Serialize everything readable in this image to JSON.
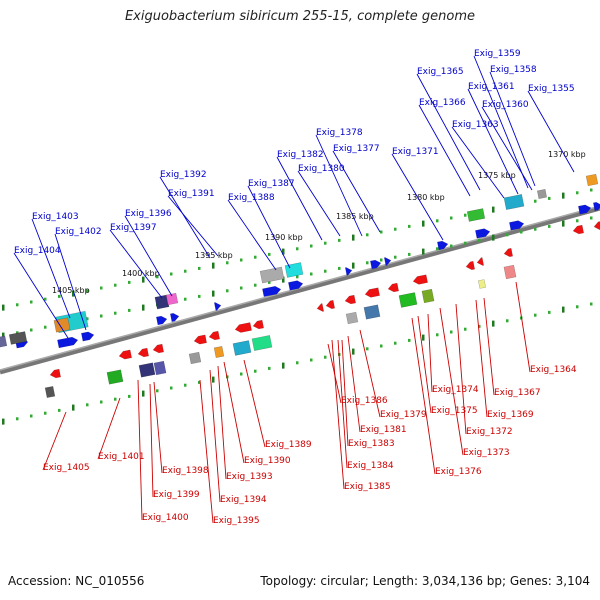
{
  "title": "Exiguobacterium sibiricum 255-15, complete genome",
  "footer": {
    "accession": "Accession: NC_010556",
    "summary": "Topology: circular; Length: 3,034,136 bp; Genes: 3,104"
  },
  "colors": {
    "axis": "#777777",
    "minor_tick": "#33aa33",
    "major_tick": "#1f7a1f",
    "plus_label": "#0000cc",
    "minus_label": "#cc0000",
    "plus_gene": "#0b18e0",
    "minus_gene": "#ee1111"
  },
  "scale_labels": [
    "1405 kbp",
    "1400 kbp",
    "1395 kbp",
    "1390 kbp",
    "1385 kbp",
    "1380 kbp",
    "1375 kbp",
    "1370 kbp"
  ],
  "plus_strand_labels": [
    "Exig_1404",
    "Exig_1403",
    "Exig_1402",
    "Exig_1397",
    "Exig_1396",
    "Exig_1392",
    "Exig_1391",
    "Exig_1388",
    "Exig_1387",
    "Exig_1382",
    "Exig_1380",
    "Exig_1378",
    "Exig_1377",
    "Exig_1371",
    "Exig_1366",
    "Exig_1365",
    "Exig_1363",
    "Exig_1361",
    "Exig_1360",
    "Exig_1359",
    "Exig_1358",
    "Exig_1355"
  ],
  "minus_strand_labels": [
    "Exig_1405",
    "Exig_1401",
    "Exig_1400",
    "Exig_1399",
    "Exig_1398",
    "Exig_1395",
    "Exig_1394",
    "Exig_1393",
    "Exig_1390",
    "Exig_1389",
    "Exig_1386",
    "Exig_1385",
    "Exig_1384",
    "Exig_1383",
    "Exig_1381",
    "Exig_1379",
    "Exig_1376",
    "Exig_1375",
    "Exig_1374",
    "Exig_1373",
    "Exig_1372",
    "Exig_1369",
    "Exig_1367",
    "Exig_1364"
  ]
}
